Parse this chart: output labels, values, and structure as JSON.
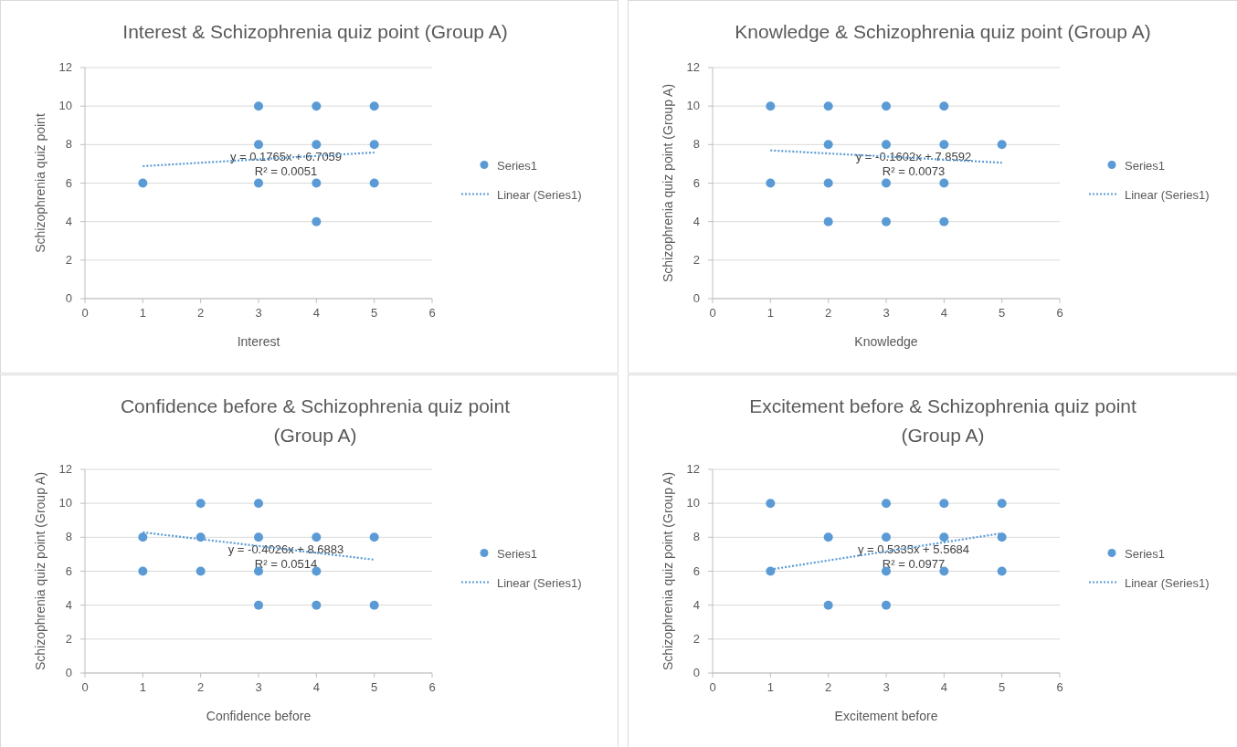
{
  "chart_data": [
    {
      "type": "scatter",
      "title": "Interest & Schizophrenia quiz point (Group A)",
      "xlabel": "Interest",
      "ylabel": "Schizophrenia quiz point",
      "xlim": [
        0,
        6
      ],
      "xticks": [
        0,
        1,
        2,
        3,
        4,
        5,
        6
      ],
      "ylim": [
        0,
        12
      ],
      "yticks": [
        0,
        2,
        4,
        6,
        8,
        10,
        12
      ],
      "grid": "y",
      "legend": "right",
      "annotations": [
        "y = 0.1765x + 6.7059",
        "R² = 0.0051"
      ],
      "series": [
        {
          "name": "Series1",
          "marker": "circle",
          "color": "#5b9bd5",
          "x": [
            1,
            3,
            3,
            3,
            4,
            4,
            4,
            4,
            5,
            5,
            5
          ],
          "values": [
            6,
            10,
            8,
            6,
            10,
            8,
            6,
            4,
            10,
            8,
            6
          ]
        },
        {
          "name": "Linear (Series1)",
          "type": "line",
          "marker": "none",
          "line_style": "dotted",
          "color": "#5b9bd5",
          "x": [
            1,
            5
          ],
          "values": [
            6.88,
            7.59
          ]
        }
      ]
    },
    {
      "type": "scatter",
      "title": "Knowledge & Schizophrenia quiz point (Group A)",
      "xlabel": "Knowledge",
      "ylabel": "Schizophrenia quiz point (Group A)",
      "xlim": [
        0,
        6
      ],
      "xticks": [
        0,
        1,
        2,
        3,
        4,
        5,
        6
      ],
      "ylim": [
        0,
        12
      ],
      "yticks": [
        0,
        2,
        4,
        6,
        8,
        10,
        12
      ],
      "grid": "y",
      "legend": "right",
      "annotations": [
        "y = -0.1602x + 7.8592",
        "R² = 0.0073"
      ],
      "series": [
        {
          "name": "Series1",
          "marker": "circle",
          "color": "#5b9bd5",
          "x": [
            1,
            1,
            2,
            2,
            2,
            2,
            3,
            3,
            3,
            3,
            4,
            4,
            4,
            4,
            5
          ],
          "values": [
            10,
            6,
            10,
            8,
            6,
            4,
            10,
            8,
            6,
            4,
            10,
            8,
            6,
            4,
            8
          ]
        },
        {
          "name": "Linear (Series1)",
          "type": "line",
          "marker": "none",
          "line_style": "dotted",
          "color": "#5b9bd5",
          "x": [
            1,
            5
          ],
          "values": [
            7.7,
            7.06
          ]
        }
      ]
    },
    {
      "type": "scatter",
      "title": "Confidence before & Schizophrenia quiz point (Group A)",
      "xlabel": "Confidence before",
      "ylabel": "Schizophrenia quiz point (Group A)",
      "xlim": [
        0,
        6
      ],
      "xticks": [
        0,
        1,
        2,
        3,
        4,
        5,
        6
      ],
      "ylim": [
        0,
        12
      ],
      "yticks": [
        0,
        2,
        4,
        6,
        8,
        10,
        12
      ],
      "grid": "y",
      "legend": "right",
      "annotations": [
        "y = -0.4026x + 8.6883",
        "R² = 0.0514"
      ],
      "series": [
        {
          "name": "Series1",
          "marker": "circle",
          "color": "#5b9bd5",
          "x": [
            1,
            1,
            2,
            2,
            2,
            3,
            3,
            3,
            3,
            4,
            4,
            4,
            5,
            5
          ],
          "values": [
            8,
            6,
            10,
            8,
            6,
            10,
            8,
            6,
            4,
            8,
            6,
            4,
            8,
            4
          ]
        },
        {
          "name": "Linear (Series1)",
          "type": "line",
          "marker": "none",
          "line_style": "dotted",
          "color": "#5b9bd5",
          "x": [
            1,
            5
          ],
          "values": [
            8.29,
            6.68
          ]
        }
      ]
    },
    {
      "type": "scatter",
      "title": "Excitement before & Schizophrenia quiz point (Group A)",
      "xlabel": "Excitement before",
      "ylabel": "Schizophrenia quiz point (Group A)",
      "xlim": [
        0,
        6
      ],
      "xticks": [
        0,
        1,
        2,
        3,
        4,
        5,
        6
      ],
      "ylim": [
        0,
        12
      ],
      "yticks": [
        0,
        2,
        4,
        6,
        8,
        10,
        12
      ],
      "grid": "y",
      "legend": "right",
      "annotations": [
        "y = 0.5335x + 5.5684",
        "R² = 0.0977"
      ],
      "series": [
        {
          "name": "Series1",
          "marker": "circle",
          "color": "#5b9bd5",
          "x": [
            1,
            1,
            2,
            2,
            3,
            3,
            3,
            3,
            4,
            4,
            4,
            5,
            5,
            5
          ],
          "values": [
            10,
            6,
            8,
            4,
            10,
            8,
            6,
            4,
            10,
            8,
            6,
            10,
            8,
            6
          ]
        },
        {
          "name": "Linear (Series1)",
          "type": "line",
          "marker": "none",
          "line_style": "dotted",
          "color": "#5b9bd5",
          "x": [
            1,
            5
          ],
          "values": [
            6.1,
            8.24
          ]
        }
      ]
    }
  ]
}
